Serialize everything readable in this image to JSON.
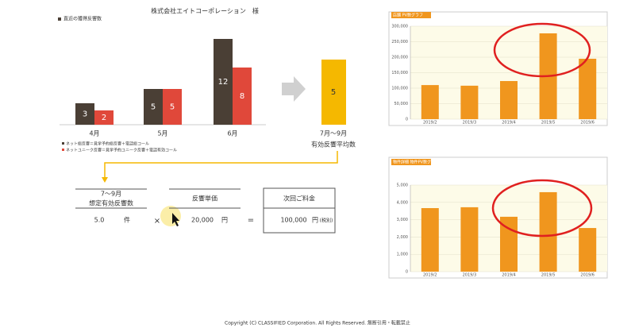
{
  "header": {
    "title": "株式会社エイトコーポレーション　様"
  },
  "chart_data": [
    {
      "type": "bar",
      "title": "直近の獲得反響数",
      "categories": [
        "4月",
        "5月",
        "6月"
      ],
      "series": [
        {
          "name": "ネット総反響＝見学予約総反響＋電話総コール",
          "color": "#4a3f35",
          "values": [
            3,
            5,
            12
          ]
        },
        {
          "name": "ネットユニーク反響＝見学予約ユニーク反響＋電話有効コール",
          "color": "#e0483a",
          "values": [
            2,
            5,
            8
          ]
        }
      ]
    },
    {
      "type": "bar",
      "title": "店舗 PV数グラフ",
      "color": "#f0961e",
      "categories": [
        "2019/2",
        "2019/3",
        "2019/4",
        "2019/5",
        "2019/6"
      ],
      "values": [
        110000,
        108000,
        123000,
        277000,
        195000
      ],
      "ylim": [
        0,
        300000
      ],
      "yticks": [
        0,
        {
          "value": 50000,
          "label": "50,000"
        },
        {
          "value": 100000,
          "label": "100,000"
        },
        {
          "value": 150000,
          "label": "150,000"
        },
        {
          "value": 200000,
          "label": "200,000"
        },
        {
          "value": 250000,
          "label": "250,000"
        },
        {
          "value": 300000,
          "label": "300,000"
        }
      ]
    },
    {
      "type": "bar",
      "title": "物件詳細 物件PV数グラフ",
      "color": "#f0961e",
      "categories": [
        "2019/2",
        "2019/3",
        "2019/4",
        "2019/5",
        "2019/6"
      ],
      "values": [
        3670,
        3720,
        3170,
        4590,
        2520
      ],
      "ylim": [
        0,
        5000
      ],
      "yticks": [
        0,
        {
          "value": 1000,
          "label": "1,000"
        },
        {
          "value": 2000,
          "label": "2,000"
        },
        {
          "value": 3000,
          "label": "3,000"
        },
        {
          "value": 4000,
          "label": "4,000"
        },
        {
          "value": 5000,
          "label": "5,000"
        }
      ]
    }
  ],
  "average": {
    "value": 5,
    "period": "7月～9月",
    "caption": "有効反響平均数"
  },
  "calc": {
    "expected": {
      "period": "7～9月",
      "label": "想定有効反響数",
      "value": "5.0",
      "unit": "件"
    },
    "times": "×",
    "unit_price": {
      "label": "反響単価",
      "value": "20,000",
      "unit": "円"
    },
    "equals": "=",
    "fee": {
      "label": "次回ご料金",
      "value": "100,000",
      "unit": "円",
      "note": "(税別)"
    }
  },
  "footer": "Copyright (C) CLASSIFIED Corporation. All Rights Reserved. 無断引用・転載禁止"
}
